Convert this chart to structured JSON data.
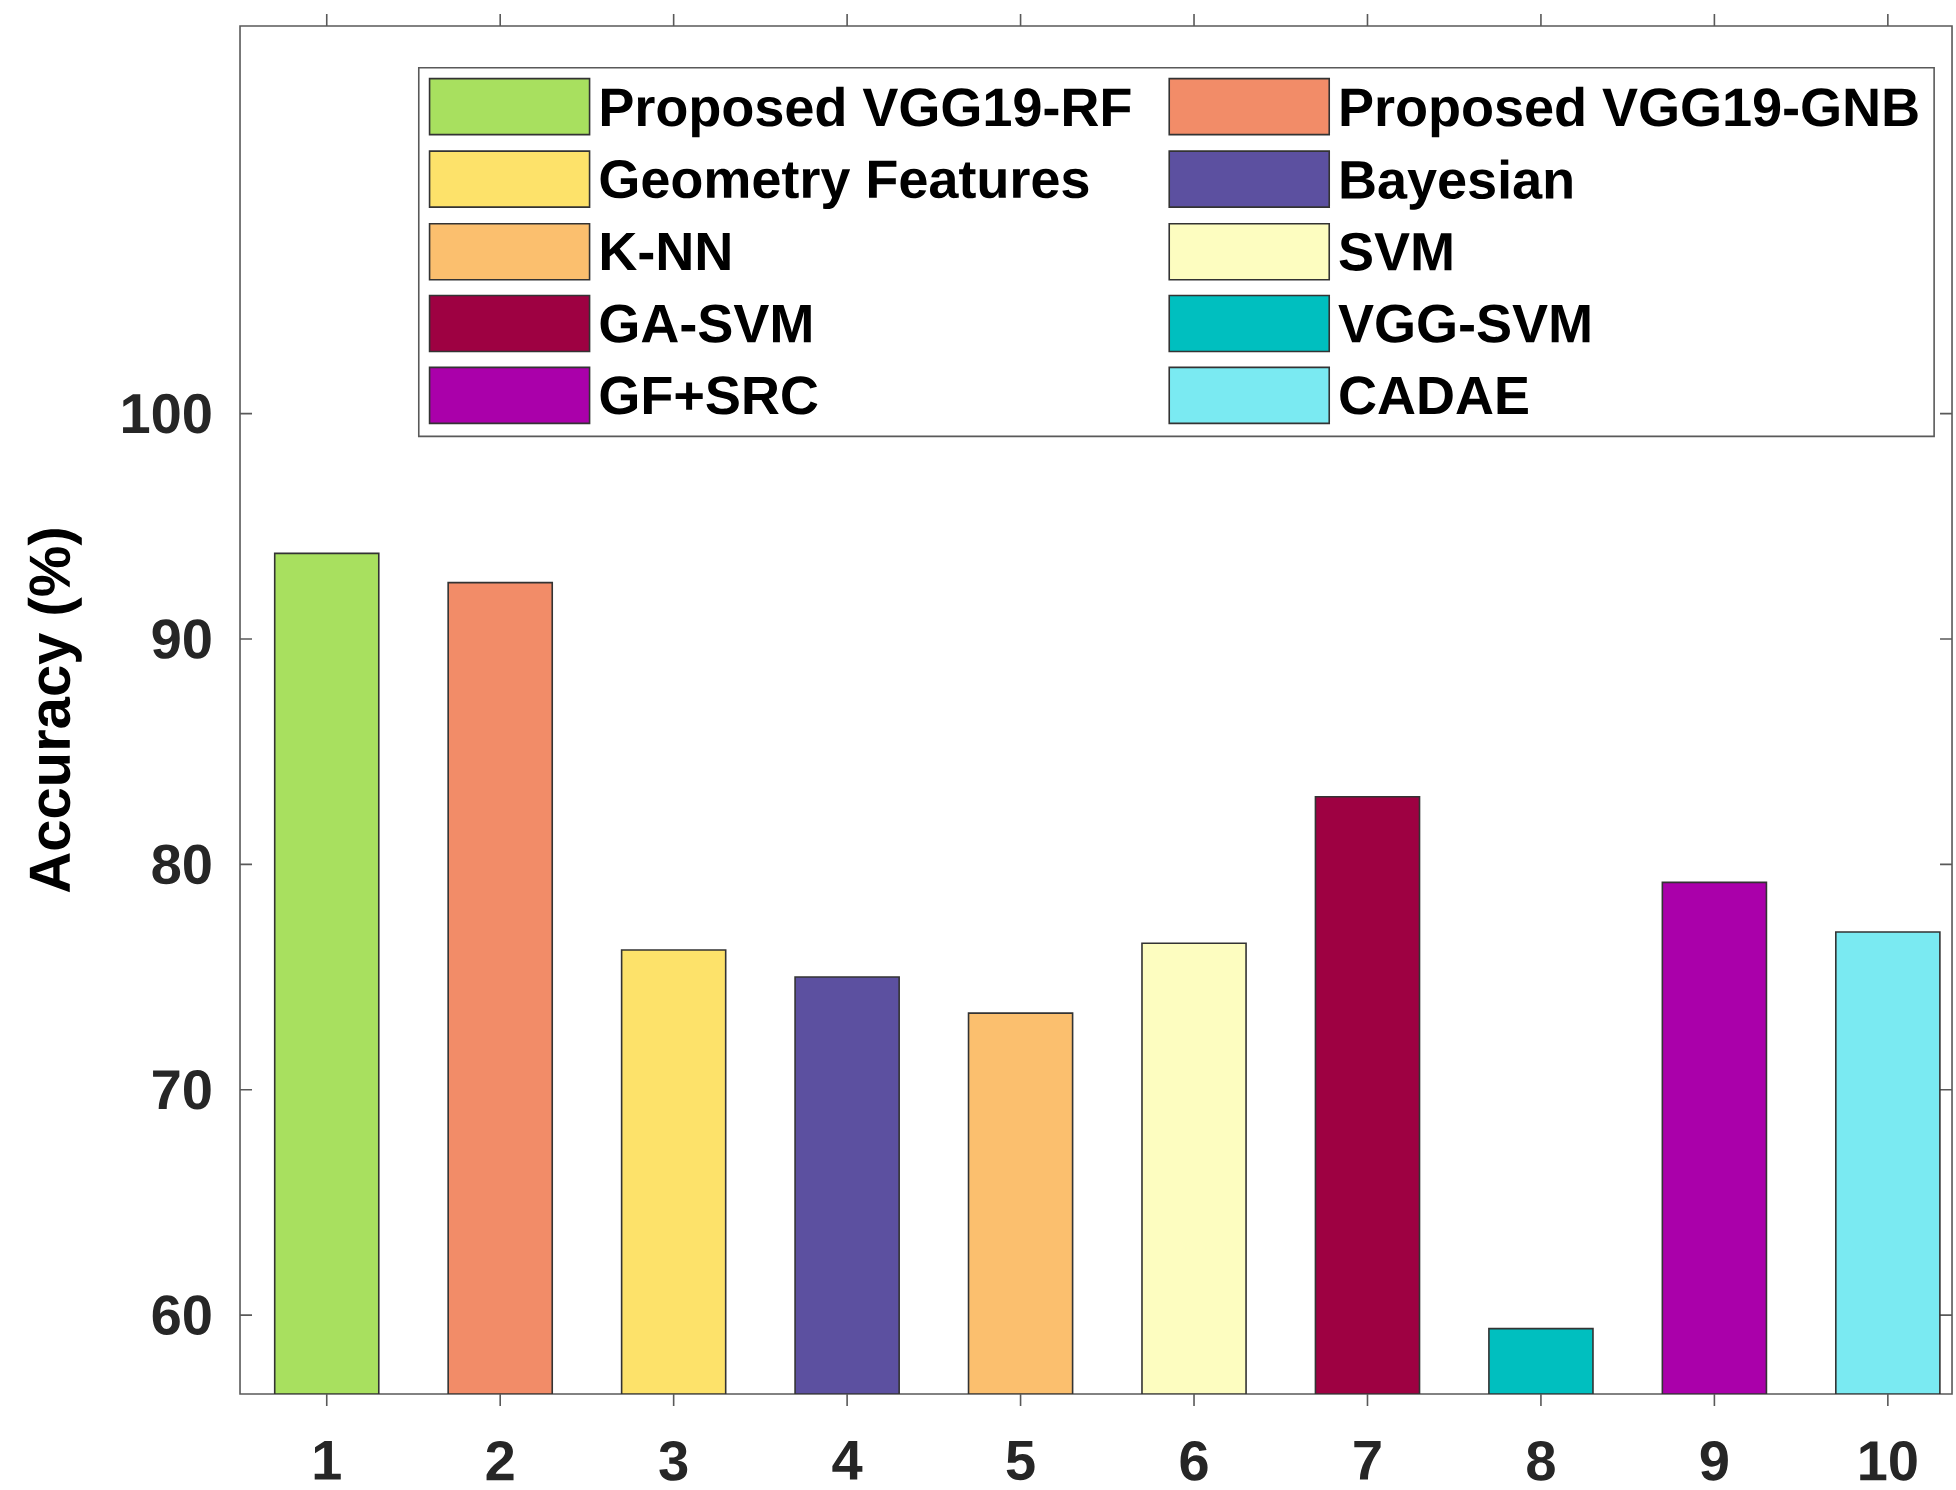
{
  "chart_data": {
    "type": "bar",
    "ylabel": "Accuracy (%)",
    "categories": [
      "1",
      "2",
      "3",
      "4",
      "5",
      "6",
      "7",
      "8",
      "9",
      "10"
    ],
    "ylim": [
      56.5,
      117.2
    ],
    "yticks": [
      60,
      70,
      80,
      90,
      100
    ],
    "legend": "top right",
    "series": [
      {
        "name": "Proposed VGG19-RF",
        "color": "#a8e05f",
        "values": [
          93.8,
          null,
          null,
          null,
          null,
          null,
          null,
          null,
          null,
          null
        ]
      },
      {
        "name": "Proposed VGG19-GNB",
        "color": "#f28c68",
        "values": [
          null,
          92.5,
          null,
          null,
          null,
          null,
          null,
          null,
          null,
          null
        ]
      },
      {
        "name": "Geometry Features",
        "color": "#fde26a",
        "values": [
          null,
          null,
          76.2,
          null,
          null,
          null,
          null,
          null,
          null,
          null
        ]
      },
      {
        "name": "Bayesian",
        "color": "#5c50a0",
        "values": [
          null,
          null,
          null,
          75.0,
          null,
          null,
          null,
          null,
          null,
          null
        ]
      },
      {
        "name": "K-NN",
        "color": "#fbbf6e",
        "values": [
          null,
          null,
          null,
          null,
          73.4,
          null,
          null,
          null,
          null,
          null
        ]
      },
      {
        "name": "SVM",
        "color": "#fdfdc0",
        "values": [
          null,
          null,
          null,
          null,
          null,
          76.5,
          null,
          null,
          null,
          null
        ]
      },
      {
        "name": "GA-SVM",
        "color": "#9e0142",
        "values": [
          null,
          null,
          null,
          null,
          null,
          null,
          83.0,
          null,
          null,
          null
        ]
      },
      {
        "name": "VGG-SVM",
        "color": "#00bfbf",
        "values": [
          null,
          null,
          null,
          null,
          null,
          null,
          null,
          59.4,
          null,
          null
        ]
      },
      {
        "name": "GF+SRC",
        "color": "#aa00aa",
        "values": [
          null,
          null,
          null,
          null,
          null,
          null,
          null,
          null,
          79.2,
          null
        ]
      },
      {
        "name": "CADAE",
        "color": "#7aeaf2",
        "values": [
          null,
          null,
          null,
          null,
          null,
          null,
          null,
          null,
          null,
          77.0
        ]
      }
    ]
  }
}
